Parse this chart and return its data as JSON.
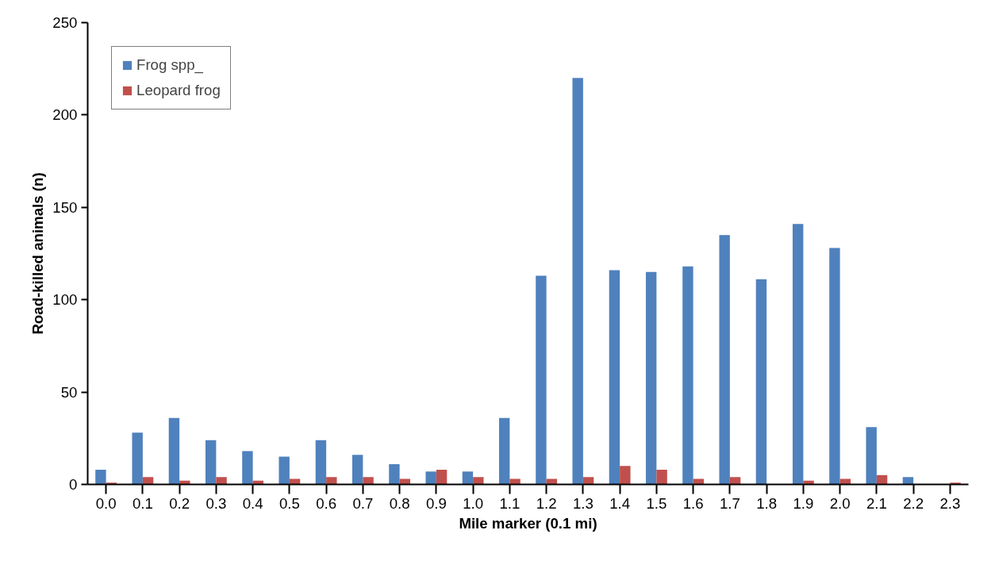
{
  "chart_data": {
    "type": "bar",
    "xlabel": "Mile marker (0.1 mi)",
    "ylabel": "Road-killed animals (n)",
    "categories": [
      "0.0",
      "0.1",
      "0.2",
      "0.3",
      "0.4",
      "0.5",
      "0.6",
      "0.7",
      "0.8",
      "0.9",
      "1.0",
      "1.1",
      "1.2",
      "1.3",
      "1.4",
      "1.5",
      "1.6",
      "1.7",
      "1.8",
      "1.9",
      "2.0",
      "2.1",
      "2.2",
      "2.3"
    ],
    "series": [
      {
        "name": "Frog spp_",
        "color": "#4f81bd",
        "values": [
          8,
          28,
          36,
          24,
          18,
          15,
          24,
          16,
          11,
          7,
          7,
          36,
          113,
          220,
          116,
          115,
          118,
          135,
          111,
          141,
          128,
          31,
          4,
          0
        ]
      },
      {
        "name": "Leopard frog",
        "color": "#c0504d",
        "values": [
          1,
          4,
          2,
          4,
          2,
          3,
          4,
          4,
          3,
          8,
          4,
          3,
          3,
          4,
          10,
          8,
          3,
          4,
          0,
          2,
          3,
          5,
          0,
          1
        ]
      }
    ],
    "ylim": [
      0,
      250
    ],
    "yticks": [
      0,
      50,
      100,
      150,
      200,
      250
    ],
    "grid": false,
    "legend": "top left"
  }
}
